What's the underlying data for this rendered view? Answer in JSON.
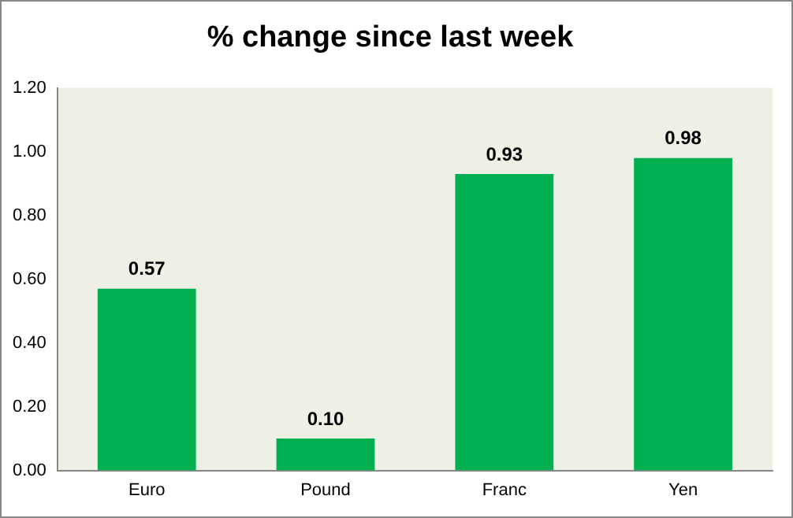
{
  "chart_data": {
    "type": "bar",
    "title": "% change since last week",
    "categories": [
      "Euro",
      "Pound",
      "Franc",
      "Yen"
    ],
    "values": [
      0.57,
      0.1,
      0.93,
      0.98
    ],
    "color": "#00b050",
    "ylim": [
      0,
      1.2
    ],
    "yticks": [
      {
        "value": 0,
        "label": "0.00"
      },
      {
        "value": 0.2,
        "label": "0.20"
      },
      {
        "value": 0.4,
        "label": "0.40"
      },
      {
        "value": 0.6,
        "label": "0.60"
      },
      {
        "value": 0.8,
        "label": "0.80"
      },
      {
        "value": 1.0,
        "label": "1.00"
      },
      {
        "value": 1.2,
        "label": "1.20"
      }
    ],
    "value_labels": [
      "0.57",
      "0.10",
      "0.93",
      "0.98"
    ],
    "grid": false,
    "legend": false
  }
}
